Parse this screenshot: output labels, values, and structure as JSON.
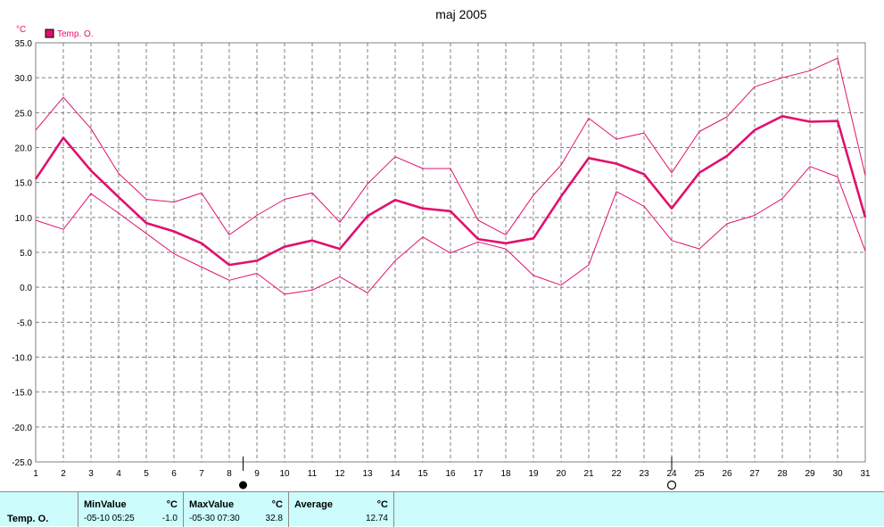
{
  "chart_data": {
    "type": "line",
    "title": "maj 2005",
    "y_unit": "°C",
    "ylim": [
      -25,
      35
    ],
    "y_ticks": [
      "35.0",
      "30.0",
      "25.0",
      "20.0",
      "15.0",
      "10.0",
      "5.0",
      "0.0",
      "-5.0",
      "-10.0",
      "-15.0",
      "-20.0",
      "-25.0"
    ],
    "x": [
      1,
      2,
      3,
      4,
      5,
      6,
      7,
      8,
      9,
      10,
      11,
      12,
      13,
      14,
      15,
      16,
      17,
      18,
      19,
      20,
      21,
      22,
      23,
      24,
      25,
      26,
      27,
      28,
      29,
      30,
      31
    ],
    "legend": "Temp. O.",
    "grid": true,
    "series": [
      {
        "name": "Temp. O.",
        "role": "average",
        "color": "#e0106e",
        "values": [
          15.5,
          21.4,
          16.7,
          12.9,
          9.2,
          8.0,
          6.3,
          3.2,
          3.8,
          5.8,
          6.7,
          5.5,
          10.2,
          12.5,
          11.3,
          10.9,
          6.9,
          6.3,
          7.0,
          13.0,
          18.5,
          17.7,
          16.2,
          11.3,
          16.4,
          18.8,
          22.5,
          24.5,
          23.7,
          23.8,
          10.0
        ]
      },
      {
        "role": "max",
        "color": "#e0106e",
        "values": [
          22.5,
          27.2,
          22.7,
          16.3,
          12.6,
          12.2,
          13.5,
          7.5,
          10.3,
          12.6,
          13.5,
          9.3,
          14.8,
          18.7,
          17.0,
          17.0,
          9.6,
          7.5,
          13.2,
          17.5,
          24.2,
          21.2,
          22.1,
          16.4,
          22.3,
          24.4,
          28.7,
          30.0,
          31.0,
          32.8,
          16.0
        ]
      },
      {
        "role": "min",
        "color": "#e0106e",
        "values": [
          9.6,
          8.3,
          13.4,
          10.6,
          7.7,
          4.8,
          2.9,
          1.0,
          2.0,
          -1.0,
          -0.4,
          1.5,
          -0.8,
          3.8,
          7.2,
          4.9,
          6.5,
          5.5,
          1.7,
          0.3,
          3.2,
          13.7,
          11.6,
          6.7,
          5.5,
          9.1,
          10.3,
          12.7,
          17.3,
          15.8,
          5.2
        ]
      }
    ],
    "markers": [
      {
        "x": 8.5,
        "symbol": "filled-circle"
      },
      {
        "x": 24,
        "symbol": "open-circle"
      }
    ]
  },
  "stats": {
    "series_label": "Temp. O.",
    "min": {
      "header": "MinValue",
      "unit": "°C",
      "time": "-05-10  05:25",
      "value": "-1.0"
    },
    "max": {
      "header": "MaxValue",
      "unit": "°C",
      "time": "-05-30  07:30",
      "value": "32.8"
    },
    "avg": {
      "header": "Average",
      "unit": "°C",
      "value": "12.74"
    }
  }
}
